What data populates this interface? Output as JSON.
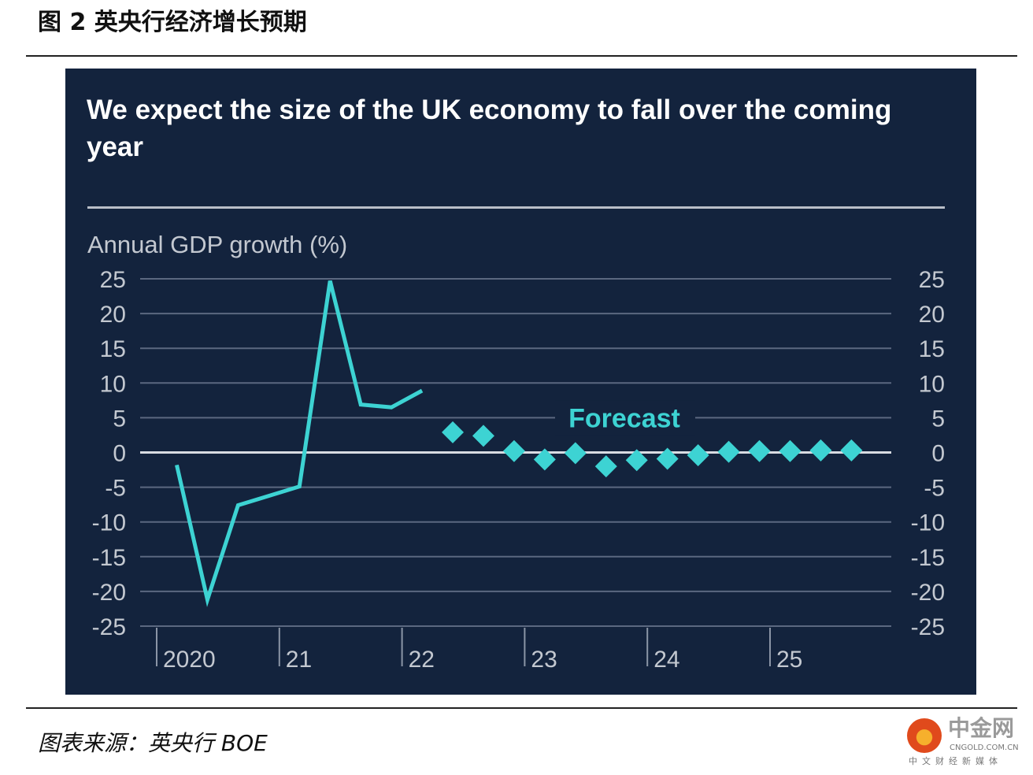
{
  "figure_title": "图 2  英央行经济增长预期",
  "source": "图表来源：英央行 BOE",
  "logo": {
    "cn": "中金网",
    "en": "CNGOLD.COM.CN",
    "sub": "中文财经新媒体"
  },
  "colors": {
    "background": "#13233d",
    "series": "#3dd3d3",
    "grid": "#5b6880",
    "zero_line": "#d8dce2"
  },
  "chart_data": {
    "type": "line",
    "title": "We expect the size of the UK economy to fall over the coming year",
    "ylabel": "Annual GDP growth (%)",
    "ylim": [
      -25,
      25
    ],
    "yticks": [
      "25",
      "20",
      "15",
      "10",
      "5",
      "0",
      "-5",
      "-10",
      "-15",
      "-20",
      "-25"
    ],
    "xticks": [
      "2020",
      "21",
      "22",
      "23",
      "24",
      "25"
    ],
    "grid": true,
    "annotation": "Forecast",
    "series": [
      {
        "style": "line",
        "points": [
          {
            "x": "2020Q1",
            "y": -1.8
          },
          {
            "x": "2020Q2",
            "y": -21.2
          },
          {
            "x": "2020Q3",
            "y": -7.6
          },
          {
            "x": "2021Q1",
            "y": -4.9
          },
          {
            "x": "2021Q2",
            "y": 24.7
          },
          {
            "x": "2021Q3",
            "y": 6.9
          },
          {
            "x": "2021Q4",
            "y": 6.5
          },
          {
            "x": "2022Q1",
            "y": 8.9
          }
        ]
      },
      {
        "style": "diamond",
        "points": [
          {
            "x": "2022Q2",
            "y": 2.9
          },
          {
            "x": "2022Q3",
            "y": 2.4
          },
          {
            "x": "2022Q4",
            "y": 0.2
          },
          {
            "x": "2023Q1",
            "y": -1.0
          },
          {
            "x": "2023Q2",
            "y": -0.1
          },
          {
            "x": "2023Q3",
            "y": -2.0
          },
          {
            "x": "2023Q4",
            "y": -1.1
          },
          {
            "x": "2024Q1",
            "y": -0.9
          },
          {
            "x": "2024Q2",
            "y": -0.4
          },
          {
            "x": "2024Q3",
            "y": 0.1
          },
          {
            "x": "2024Q4",
            "y": 0.2
          },
          {
            "x": "2025Q1",
            "y": 0.2
          },
          {
            "x": "2025Q2",
            "y": 0.3
          },
          {
            "x": "2025Q3",
            "y": 0.3
          }
        ]
      }
    ]
  }
}
